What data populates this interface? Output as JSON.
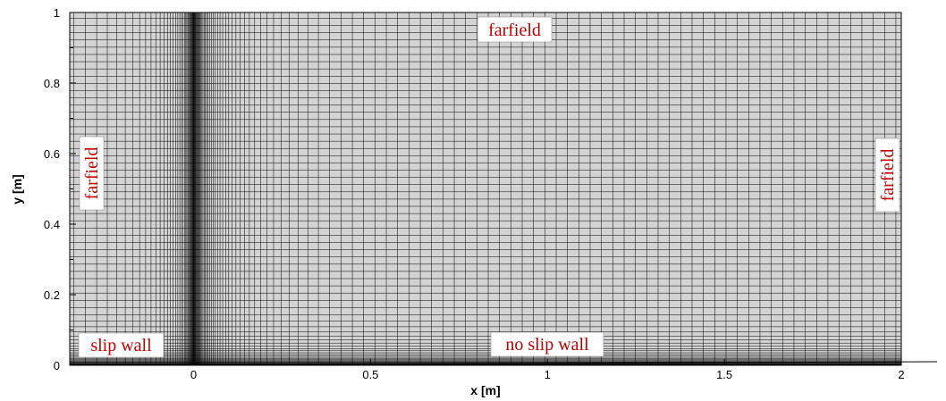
{
  "chart_data": {
    "type": "mesh",
    "x_axis": {
      "title": "x [m]",
      "range": [
        -0.35,
        2.0
      ],
      "ticks": [
        0,
        0.5,
        1,
        1.5,
        2
      ],
      "tick_labels": [
        "0",
        "0.5",
        "1",
        "1.5",
        "2"
      ]
    },
    "y_axis": {
      "title": "y [m]",
      "range": [
        0,
        1
      ],
      "ticks": [
        0,
        0.2,
        0.4,
        0.6,
        0.8,
        1
      ],
      "tick_labels": [
        "0",
        "0.2",
        "0.4",
        "0.6",
        "0.8",
        "1"
      ]
    },
    "boundary_labels": {
      "top": "farfield",
      "left": "farfield",
      "right": "farfield",
      "bottom_left": "slip wall",
      "bottom_right": "no slip wall"
    },
    "grid_clustering": {
      "x_cluster_at": 0,
      "y_cluster_at": 0
    },
    "colors": {
      "background": "#d3d3d3",
      "grid_line": "#000000",
      "label_text": "#c00000",
      "label_box": "#ffffff"
    }
  }
}
